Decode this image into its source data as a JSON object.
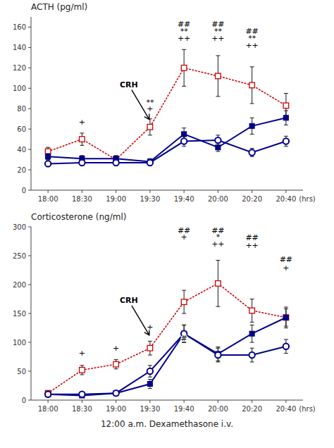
{
  "chart_data": [
    {
      "type": "line",
      "title": "ACTH (pg/ml)",
      "categories": [
        "18:00",
        "18:30",
        "19:00",
        "19:30",
        "19:40",
        "20:00",
        "20:20",
        "20:40"
      ],
      "series": [
        {
          "color": "#cc0000",
          "marker": "square-open",
          "line_style": "dotted",
          "values": [
            38,
            50,
            30,
            62,
            120,
            112,
            103,
            83
          ],
          "errors": [
            4,
            6,
            3,
            8,
            18,
            20,
            18,
            12
          ]
        },
        {
          "color": "#00008B",
          "marker": "square",
          "line_style": "solid",
          "values": [
            33,
            31,
            31,
            28,
            55,
            42,
            63,
            71
          ],
          "errors": [
            3,
            3,
            3,
            3,
            6,
            4,
            8,
            7
          ]
        },
        {
          "color": "#00008B",
          "marker": "circle-open",
          "line_style": "solid",
          "values": [
            26,
            27,
            27,
            27,
            48,
            49,
            37,
            48
          ],
          "errors": [
            3,
            3,
            3,
            3,
            5,
            5,
            4,
            5
          ]
        }
      ],
      "ylim": [
        0,
        170
      ],
      "yticks": [
        0,
        20,
        40,
        60,
        80,
        100,
        120,
        140,
        160
      ],
      "grid": false,
      "annotations": [
        {
          "text": "(hrs)"
        },
        {
          "text": "CRH",
          "x": "19:30",
          "y": 68,
          "type": "arrow"
        },
        {
          "text": "+",
          "x": "18:30",
          "y": 63
        },
        {
          "text": "**",
          "x": "19:30",
          "y": 82
        },
        {
          "text": "+",
          "x": "19:30",
          "y": 76
        },
        {
          "text": "##",
          "x": "19:40",
          "y": 159
        },
        {
          "text": "**",
          "x": "19:40",
          "y": 152
        },
        {
          "text": "++",
          "x": "19:40",
          "y": 145
        },
        {
          "text": "##",
          "x": "20:00",
          "y": 159
        },
        {
          "text": "**",
          "x": "20:00",
          "y": 152
        },
        {
          "text": "++",
          "x": "20:00",
          "y": 145
        },
        {
          "text": "##",
          "x": "20:20",
          "y": 152
        },
        {
          "text": "**",
          "x": "20:20",
          "y": 145
        },
        {
          "text": "++",
          "x": "20:20",
          "y": 138
        }
      ]
    },
    {
      "type": "line",
      "title": "Corticosterone (ng/ml)",
      "xlabel": "12:00 a.m. Dexamethasone i.v.",
      "categories": [
        "18:00",
        "18:30",
        "19:00",
        "19:30",
        "19:40",
        "20:00",
        "20:20",
        "20:40"
      ],
      "series": [
        {
          "color": "#cc0000",
          "marker": "square-open",
          "line_style": "dotted",
          "values": [
            12,
            52,
            62,
            90,
            170,
            202,
            155,
            143
          ],
          "errors": [
            3,
            8,
            8,
            12,
            20,
            40,
            20,
            18
          ]
        },
        {
          "color": "#00008B",
          "marker": "square",
          "line_style": "solid",
          "values": [
            10,
            8,
            12,
            28,
            115,
            80,
            115,
            143
          ],
          "errors": [
            2,
            2,
            3,
            8,
            15,
            12,
            15,
            15
          ]
        },
        {
          "color": "#00008B",
          "marker": "circle-open",
          "line_style": "solid",
          "values": [
            10,
            10,
            12,
            50,
            115,
            78,
            78,
            93
          ],
          "errors": [
            2,
            2,
            2,
            10,
            15,
            12,
            12,
            12
          ]
        }
      ],
      "ylim": [
        0,
        300
      ],
      "yticks": [
        0,
        50,
        100,
        150,
        200,
        250,
        300
      ],
      "grid": false,
      "annotations": [
        {
          "text": "(hrs)"
        },
        {
          "text": "CRH",
          "x": "19:30",
          "y": 110,
          "type": "arrow"
        },
        {
          "text": "+",
          "x": "18:30",
          "y": 75
        },
        {
          "text": "+",
          "x": "19:00",
          "y": 83
        },
        {
          "text": "+",
          "x": "19:30",
          "y": 120
        },
        {
          "text": "##",
          "x": "19:40",
          "y": 286
        },
        {
          "text": "+",
          "x": "19:40",
          "y": 276
        },
        {
          "text": "#",
          "x": "19:40",
          "y": 100
        },
        {
          "text": "##",
          "x": "20:00",
          "y": 286
        },
        {
          "text": "*",
          "x": "20:00",
          "y": 276
        },
        {
          "text": "++",
          "x": "20:00",
          "y": 263
        },
        {
          "text": "##",
          "x": "20:20",
          "y": 275
        },
        {
          "text": "++",
          "x": "20:20",
          "y": 261
        },
        {
          "text": "##",
          "x": "20:40",
          "y": 236
        },
        {
          "text": "+",
          "x": "20:40",
          "y": 222
        }
      ]
    }
  ]
}
